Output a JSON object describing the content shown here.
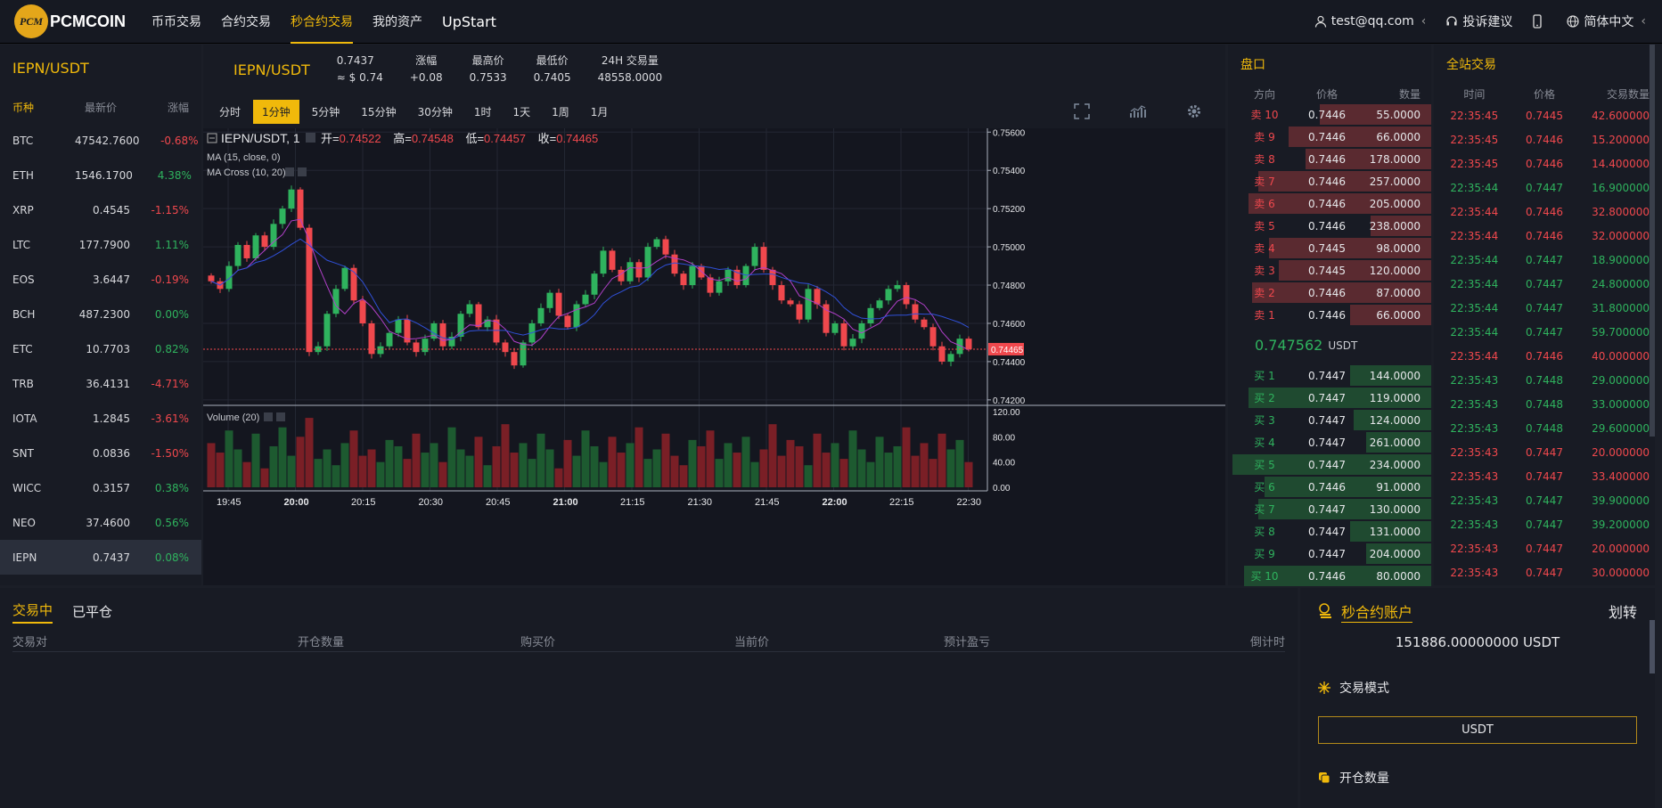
{
  "header": {
    "logo_badge": "PCM",
    "logo_text": "PCMCOIN",
    "nav": [
      "币币交易",
      "合约交易",
      "秒合约交易",
      "我的资产",
      "UpStart"
    ],
    "user": "test@qq.com",
    "chevron": "‹",
    "feedback": "投诉建议",
    "language": "简体中文"
  },
  "market": {
    "title": "IEPN/USDT",
    "headers": {
      "coin": "币种",
      "price": "最新价",
      "change": "涨幅"
    },
    "coins": [
      {
        "n": "BTC",
        "p": "47542.7600",
        "c": "-0.68%",
        "up": false
      },
      {
        "n": "ETH",
        "p": "1546.1700",
        "c": "4.38%",
        "up": true
      },
      {
        "n": "XRP",
        "p": "0.4545",
        "c": "-1.15%",
        "up": false
      },
      {
        "n": "LTC",
        "p": "177.7900",
        "c": "1.11%",
        "up": true
      },
      {
        "n": "EOS",
        "p": "3.6447",
        "c": "-0.19%",
        "up": false
      },
      {
        "n": "BCH",
        "p": "487.2300",
        "c": "0.00%",
        "up": true
      },
      {
        "n": "ETC",
        "p": "10.7703",
        "c": "0.82%",
        "up": true
      },
      {
        "n": "TRB",
        "p": "36.4131",
        "c": "-4.71%",
        "up": false
      },
      {
        "n": "IOTA",
        "p": "1.2845",
        "c": "-3.61%",
        "up": false
      },
      {
        "n": "SNT",
        "p": "0.0836",
        "c": "-1.50%",
        "up": false
      },
      {
        "n": "WICC",
        "p": "0.3157",
        "c": "0.38%",
        "up": true
      },
      {
        "n": "NEO",
        "p": "37.4600",
        "c": "0.56%",
        "up": true
      },
      {
        "n": "IEPN",
        "p": "0.7437",
        "c": "0.08%",
        "up": true,
        "sel": true
      }
    ]
  },
  "ticker": {
    "pair": "IEPN/USDT",
    "price": "0.7437",
    "usd": "≈ $ 0.74",
    "change_label": "涨幅",
    "change": "+0.08",
    "high_label": "最高价",
    "high": "0.7533",
    "low_label": "最低价",
    "low": "0.7405",
    "vol_label": "24H 交易量",
    "vol": "48558.0000"
  },
  "timeframes": [
    "分时",
    "1分钟",
    "5分钟",
    "15分钟",
    "30分钟",
    "1时",
    "1天",
    "1周",
    "1月"
  ],
  "chart_data": {
    "type": "candlestick",
    "title": "IEPN/USDT, 1",
    "ohlc_labels": {
      "o": "开=",
      "h": "高=",
      "l": "低=",
      "c": "收=",
      "ov": "0.74522",
      "hv": "0.74548",
      "lv": "0.74457",
      "cv": "0.74465"
    },
    "indicators": [
      "MA (15, close, 0)",
      "MA Cross (10, 20)"
    ],
    "volume_label": "Volume (20)",
    "price_ticks": [
      "0.75600",
      "0.75400",
      "0.75200",
      "0.75000",
      "0.74800",
      "0.74600",
      "0.74400",
      "0.74200"
    ],
    "volume_ticks": [
      "120.00",
      "80.00",
      "40.00",
      "0.00"
    ],
    "x_ticks": [
      "19:45",
      "20:00",
      "20:15",
      "20:30",
      "20:45",
      "21:00",
      "21:15",
      "21:30",
      "21:45",
      "22:00",
      "22:15",
      "22:30"
    ],
    "bold_ticks": [
      "20:00",
      "21:00",
      "22:00"
    ],
    "last_price": "0.74465",
    "ylim": [
      0.7419,
      0.7562
    ],
    "closes": [
      0.7482,
      0.7478,
      0.749,
      0.7501,
      0.7494,
      0.7506,
      0.75,
      0.7512,
      0.752,
      0.753,
      0.751,
      0.7445,
      0.7448,
      0.7465,
      0.7478,
      0.7489,
      0.7472,
      0.746,
      0.7444,
      0.7448,
      0.7455,
      0.7462,
      0.745,
      0.7445,
      0.7452,
      0.746,
      0.7448,
      0.7453,
      0.7465,
      0.747,
      0.7458,
      0.7462,
      0.745,
      0.7445,
      0.7438,
      0.745,
      0.746,
      0.7468,
      0.7476,
      0.7464,
      0.7458,
      0.747,
      0.7475,
      0.7486,
      0.7498,
      0.7488,
      0.7482,
      0.7492,
      0.7484,
      0.75,
      0.7504,
      0.7496,
      0.7486,
      0.748,
      0.749,
      0.7484,
      0.7476,
      0.7482,
      0.7488,
      0.748,
      0.749,
      0.75,
      0.7488,
      0.748,
      0.7472,
      0.747,
      0.7462,
      0.7478,
      0.747,
      0.7455,
      0.746,
      0.7448,
      0.7452,
      0.746,
      0.7468,
      0.7472,
      0.7478,
      0.748,
      0.747,
      0.7462,
      0.7458,
      0.7448,
      0.744,
      0.7444,
      0.7452,
      0.74465
    ],
    "volumes": [
      70,
      55,
      90,
      60,
      40,
      85,
      30,
      65,
      95,
      50,
      80,
      110,
      45,
      60,
      35,
      70,
      90,
      50,
      60,
      40,
      75,
      65,
      45,
      85,
      55,
      70,
      40,
      95,
      60,
      50,
      80,
      35,
      65,
      100,
      55,
      70,
      45,
      85,
      60,
      30,
      75,
      50,
      90,
      65,
      40,
      80,
      55,
      70,
      95,
      45,
      60,
      85,
      50,
      35,
      75,
      65,
      90,
      45,
      70,
      55,
      80,
      40,
      60,
      100,
      50,
      75,
      65,
      35,
      85,
      55,
      70,
      45,
      90,
      60,
      40,
      80,
      55,
      65,
      95,
      50,
      70,
      45,
      85,
      60,
      75,
      40
    ],
    "colors": {
      "up": "#2fb35e",
      "down": "#f0484d",
      "ma1": "#b040c8",
      "ma2": "#3050d8",
      "ma3": "#2a7a3a"
    }
  },
  "orderbook": {
    "title": "盘口",
    "cols": [
      "方向",
      "价格",
      "数量"
    ],
    "asks": [
      {
        "d": "卖 10",
        "p": "0.7446",
        "q": "55.0000",
        "w": 55
      },
      {
        "d": "卖 9",
        "p": "0.7446",
        "q": "66.0000",
        "w": 70
      },
      {
        "d": "卖 8",
        "p": "0.7446",
        "q": "178.0000",
        "w": 62
      },
      {
        "d": "卖 7",
        "p": "0.7446",
        "q": "257.0000",
        "w": 85
      },
      {
        "d": "卖 6",
        "p": "0.7446",
        "q": "205.0000",
        "w": 90
      },
      {
        "d": "卖 5",
        "p": "0.7446",
        "q": "238.0000",
        "w": 30
      },
      {
        "d": "卖 4",
        "p": "0.7445",
        "q": "98.0000",
        "w": 80
      },
      {
        "d": "卖 3",
        "p": "0.7445",
        "q": "120.0000",
        "w": 75
      },
      {
        "d": "卖 2",
        "p": "0.7446",
        "q": "87.0000",
        "w": 88
      },
      {
        "d": "卖 1",
        "p": "0.7446",
        "q": "66.0000",
        "w": 40
      }
    ],
    "mid": "0.747562",
    "mid_unit": "USDT",
    "bids": [
      {
        "d": "买 1",
        "p": "0.7447",
        "q": "144.0000",
        "w": 40
      },
      {
        "d": "买 2",
        "p": "0.7447",
        "q": "119.0000",
        "w": 90
      },
      {
        "d": "买 3",
        "p": "0.7447",
        "q": "124.0000",
        "w": 38
      },
      {
        "d": "买 4",
        "p": "0.7447",
        "q": "261.0000",
        "w": 32
      },
      {
        "d": "买 5",
        "p": "0.7447",
        "q": "234.0000",
        "w": 98
      },
      {
        "d": "买 6",
        "p": "0.7446",
        "q": "91.0000",
        "w": 82
      },
      {
        "d": "买 7",
        "p": "0.7447",
        "q": "130.0000",
        "w": 85
      },
      {
        "d": "买 8",
        "p": "0.7447",
        "q": "131.0000",
        "w": 40
      },
      {
        "d": "买 9",
        "p": "0.7447",
        "q": "204.0000",
        "w": 32
      },
      {
        "d": "买 10",
        "p": "0.7446",
        "q": "80.0000",
        "w": 92
      }
    ]
  },
  "trades": {
    "title": "全站交易",
    "cols": [
      "时间",
      "价格",
      "交易数量"
    ],
    "rows": [
      {
        "t": "22:35:45",
        "p": "0.7445",
        "q": "42.600000",
        "up": false
      },
      {
        "t": "22:35:45",
        "p": "0.7446",
        "q": "15.200000",
        "up": false
      },
      {
        "t": "22:35:45",
        "p": "0.7446",
        "q": "14.400000",
        "up": false
      },
      {
        "t": "22:35:44",
        "p": "0.7447",
        "q": "16.900000",
        "up": true
      },
      {
        "t": "22:35:44",
        "p": "0.7446",
        "q": "32.800000",
        "up": false
      },
      {
        "t": "22:35:44",
        "p": "0.7446",
        "q": "32.000000",
        "up": false
      },
      {
        "t": "22:35:44",
        "p": "0.7447",
        "q": "18.900000",
        "up": true
      },
      {
        "t": "22:35:44",
        "p": "0.7447",
        "q": "24.800000",
        "up": true
      },
      {
        "t": "22:35:44",
        "p": "0.7447",
        "q": "31.800000",
        "up": true
      },
      {
        "t": "22:35:44",
        "p": "0.7447",
        "q": "59.700000",
        "up": true
      },
      {
        "t": "22:35:44",
        "p": "0.7446",
        "q": "40.000000",
        "up": false
      },
      {
        "t": "22:35:43",
        "p": "0.7448",
        "q": "29.000000",
        "up": true
      },
      {
        "t": "22:35:43",
        "p": "0.7448",
        "q": "33.000000",
        "up": true
      },
      {
        "t": "22:35:43",
        "p": "0.7448",
        "q": "29.600000",
        "up": true
      },
      {
        "t": "22:35:43",
        "p": "0.7447",
        "q": "20.000000",
        "up": false
      },
      {
        "t": "22:35:43",
        "p": "0.7447",
        "q": "33.400000",
        "up": false
      },
      {
        "t": "22:35:43",
        "p": "0.7447",
        "q": "39.900000",
        "up": true
      },
      {
        "t": "22:35:43",
        "p": "0.7447",
        "q": "39.200000",
        "up": true
      },
      {
        "t": "22:35:43",
        "p": "0.7447",
        "q": "20.000000",
        "up": false
      },
      {
        "t": "22:35:43",
        "p": "0.7447",
        "q": "30.000000",
        "up": false
      }
    ]
  },
  "positions": {
    "tabs": [
      "交易中",
      "已平仓"
    ],
    "cols": [
      "交易对",
      "开仓数量",
      "购买价",
      "当前价",
      "预计盈亏",
      "倒计时"
    ]
  },
  "account": {
    "title": "秒合约账户",
    "transfer": "划转",
    "balance": "151886.00000000 USDT",
    "mode_label": "交易模式",
    "mode_value": "USDT",
    "open_label": "开仓数量"
  }
}
